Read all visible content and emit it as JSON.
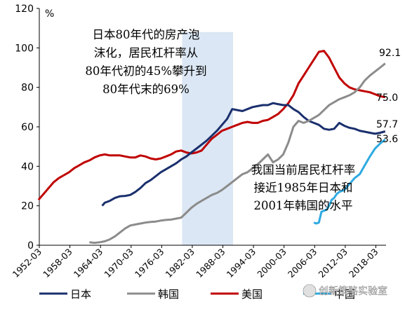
{
  "chart_data": {
    "type": "line",
    "y_unit": "%",
    "ylim": [
      0,
      120
    ],
    "y_ticks": [
      "0",
      "20",
      "40",
      "60",
      "80",
      "100",
      "120"
    ],
    "xlim": [
      "1952-03",
      "2020-03"
    ],
    "x_ticks": [
      "1952-03",
      "1958-03",
      "1964-03",
      "1970-03",
      "1976-03",
      "1982-03",
      "1988-03",
      "1994-03",
      "2000-03",
      "2006-03",
      "2012-03",
      "2018-03"
    ],
    "highlight_band": {
      "from": "1980-03",
      "to": "1990-03",
      "color": "#dbe7f4"
    },
    "annotations": [
      {
        "lines": [
          "日本80年代的房产泡",
          "沫化，居民杠杆率从",
          "80年代初的45%攀升到",
          "80年代末的69%"
        ]
      },
      {
        "lines": [
          "我国当前居民杠杆率",
          "接近1985年日本和",
          "2001年韩国的水平"
        ]
      }
    ],
    "end_labels": [
      {
        "series": "韩国",
        "text": "92.1"
      },
      {
        "series": "美国",
        "text": "75.0"
      },
      {
        "series": "日本",
        "text": "57.7"
      },
      {
        "series": "中国",
        "text": "53.6"
      }
    ],
    "series": [
      {
        "name": "日本",
        "color": "#1a2f6d",
        "points": [
          [
            1964.5,
            20
          ],
          [
            1965,
            21.5
          ],
          [
            1966,
            22.5
          ],
          [
            1967,
            24
          ],
          [
            1968,
            24.8
          ],
          [
            1969,
            25
          ],
          [
            1970,
            25.5
          ],
          [
            1971,
            27
          ],
          [
            1972,
            29
          ],
          [
            1973,
            31.5
          ],
          [
            1974,
            33
          ],
          [
            1975,
            35
          ],
          [
            1976,
            37
          ],
          [
            1977,
            38.5
          ],
          [
            1978,
            40
          ],
          [
            1979,
            41.5
          ],
          [
            1980,
            43.5
          ],
          [
            1981,
            45
          ],
          [
            1982,
            47
          ],
          [
            1983,
            49
          ],
          [
            1984,
            51
          ],
          [
            1985,
            53
          ],
          [
            1986,
            55.5
          ],
          [
            1987,
            58
          ],
          [
            1988,
            61
          ],
          [
            1989,
            64
          ],
          [
            1990,
            69
          ],
          [
            1991,
            68.5
          ],
          [
            1992,
            68
          ],
          [
            1993,
            69
          ],
          [
            1994,
            70
          ],
          [
            1995,
            70.5
          ],
          [
            1996,
            71
          ],
          [
            1997,
            71
          ],
          [
            1998,
            72
          ],
          [
            1999,
            71.5
          ],
          [
            2000,
            71
          ],
          [
            2001,
            71
          ],
          [
            2002,
            69
          ],
          [
            2003,
            67.5
          ],
          [
            2004,
            65
          ],
          [
            2005,
            63
          ],
          [
            2006,
            62
          ],
          [
            2007,
            61
          ],
          [
            2008,
            59
          ],
          [
            2009,
            58.5
          ],
          [
            2010,
            59
          ],
          [
            2011,
            62
          ],
          [
            2012,
            60.5
          ],
          [
            2013,
            59.5
          ],
          [
            2014,
            59
          ],
          [
            2015,
            58
          ],
          [
            2016,
            57.5
          ],
          [
            2017,
            57
          ],
          [
            2018,
            56.5
          ],
          [
            2019,
            57
          ],
          [
            2020,
            57.7
          ]
        ]
      },
      {
        "name": "韩国",
        "color": "#8c8c8c",
        "points": [
          [
            1962,
            1.5
          ],
          [
            1963,
            1.2
          ],
          [
            1964,
            1.5
          ],
          [
            1965,
            2
          ],
          [
            1966,
            3
          ],
          [
            1967,
            4.5
          ],
          [
            1968,
            6.5
          ],
          [
            1969,
            8.5
          ],
          [
            1970,
            10
          ],
          [
            1971,
            10.5
          ],
          [
            1972,
            11
          ],
          [
            1973,
            11.5
          ],
          [
            1974,
            11.8
          ],
          [
            1975,
            12
          ],
          [
            1976,
            12.5
          ],
          [
            1977,
            12.8
          ],
          [
            1978,
            13
          ],
          [
            1979,
            13.5
          ],
          [
            1980,
            14
          ],
          [
            1981,
            16.5
          ],
          [
            1982,
            19
          ],
          [
            1983,
            21
          ],
          [
            1984,
            22.5
          ],
          [
            1985,
            24
          ],
          [
            1986,
            25.5
          ],
          [
            1987,
            26.5
          ],
          [
            1988,
            28
          ],
          [
            1989,
            30
          ],
          [
            1990,
            32
          ],
          [
            1991,
            34
          ],
          [
            1992,
            36
          ],
          [
            1993,
            37
          ],
          [
            1994,
            39
          ],
          [
            1995,
            41
          ],
          [
            1996,
            43.5
          ],
          [
            1997,
            46
          ],
          [
            1998,
            42
          ],
          [
            1999,
            43.5
          ],
          [
            2000,
            46
          ],
          [
            2001,
            52
          ],
          [
            2002,
            60
          ],
          [
            2003,
            63
          ],
          [
            2004,
            62
          ],
          [
            2005,
            63
          ],
          [
            2006,
            64.5
          ],
          [
            2007,
            66
          ],
          [
            2008,
            68.5
          ],
          [
            2009,
            71
          ],
          [
            2010,
            72.5
          ],
          [
            2011,
            74
          ],
          [
            2012,
            75
          ],
          [
            2013,
            76
          ],
          [
            2014,
            77.5
          ],
          [
            2015,
            80
          ],
          [
            2016,
            83.5
          ],
          [
            2017,
            86
          ],
          [
            2018,
            88
          ],
          [
            2019,
            90
          ],
          [
            2020,
            92.1
          ]
        ]
      },
      {
        "name": "美国",
        "color": "#c00000",
        "points": [
          [
            1952,
            23
          ],
          [
            1953,
            26
          ],
          [
            1954,
            29
          ],
          [
            1955,
            32
          ],
          [
            1956,
            34
          ],
          [
            1957,
            35.5
          ],
          [
            1958,
            37
          ],
          [
            1959,
            39
          ],
          [
            1960,
            40.5
          ],
          [
            1961,
            42
          ],
          [
            1962,
            43
          ],
          [
            1963,
            44.5
          ],
          [
            1964,
            45.5
          ],
          [
            1965,
            46
          ],
          [
            1966,
            45.5
          ],
          [
            1967,
            45.5
          ],
          [
            1968,
            45.5
          ],
          [
            1969,
            45
          ],
          [
            1970,
            44.5
          ],
          [
            1971,
            44.5
          ],
          [
            1972,
            45.5
          ],
          [
            1973,
            45
          ],
          [
            1974,
            44
          ],
          [
            1975,
            43.5
          ],
          [
            1976,
            44
          ],
          [
            1977,
            45
          ],
          [
            1978,
            46
          ],
          [
            1979,
            47.5
          ],
          [
            1980,
            48
          ],
          [
            1981,
            47
          ],
          [
            1982,
            46.5
          ],
          [
            1983,
            47
          ],
          [
            1984,
            48
          ],
          [
            1985,
            51
          ],
          [
            1986,
            54
          ],
          [
            1987,
            56
          ],
          [
            1988,
            58
          ],
          [
            1989,
            59
          ],
          [
            1990,
            60
          ],
          [
            1991,
            61
          ],
          [
            1992,
            62
          ],
          [
            1993,
            62.5
          ],
          [
            1994,
            62
          ],
          [
            1995,
            62
          ],
          [
            1996,
            63
          ],
          [
            1997,
            63.5
          ],
          [
            1998,
            65
          ],
          [
            1999,
            66.5
          ],
          [
            2000,
            69
          ],
          [
            2001,
            72
          ],
          [
            2002,
            76
          ],
          [
            2003,
            82
          ],
          [
            2004,
            86
          ],
          [
            2005,
            90
          ],
          [
            2006,
            94
          ],
          [
            2007,
            98
          ],
          [
            2008,
            98.5
          ],
          [
            2009,
            95
          ],
          [
            2010,
            90
          ],
          [
            2011,
            85
          ],
          [
            2012,
            82
          ],
          [
            2013,
            80
          ],
          [
            2014,
            79
          ],
          [
            2015,
            78.5
          ],
          [
            2016,
            78
          ],
          [
            2017,
            77.5
          ],
          [
            2018,
            76.5
          ],
          [
            2019,
            75.5
          ],
          [
            2020,
            75
          ]
        ]
      },
      {
        "name": "中国",
        "color": "#2eaae1",
        "points": [
          [
            2006,
            11.5
          ],
          [
            2006.5,
            11
          ],
          [
            2007,
            11.5
          ],
          [
            2007.5,
            17
          ],
          [
            2008,
            17.5
          ],
          [
            2008.5,
            18
          ],
          [
            2009,
            20
          ],
          [
            2009.5,
            23
          ],
          [
            2010,
            24
          ],
          [
            2010.5,
            26
          ],
          [
            2011,
            27
          ],
          [
            2012,
            28
          ],
          [
            2013,
            31
          ],
          [
            2014,
            34
          ],
          [
            2015,
            36
          ],
          [
            2016,
            40.5
          ],
          [
            2017,
            45
          ],
          [
            2018,
            49
          ],
          [
            2019,
            51.5
          ],
          [
            2020,
            53.6
          ]
        ]
      }
    ]
  }
}
